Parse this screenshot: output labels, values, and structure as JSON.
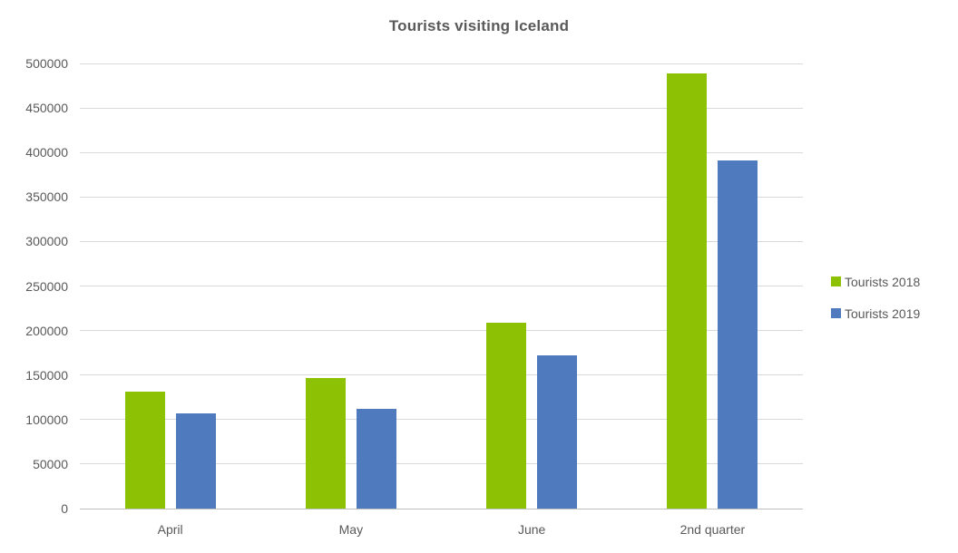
{
  "chart_data": {
    "type": "bar",
    "title": "Tourists visiting Iceland",
    "categories": [
      "April",
      "May",
      "June",
      "2nd quarter"
    ],
    "series": [
      {
        "name": "Tourists 2018",
        "color": "#8cc104",
        "values": [
          131000,
          147000,
          209000,
          489000
        ]
      },
      {
        "name": "Tourists 2019",
        "color": "#4f7bbe",
        "values": [
          107000,
          112000,
          172000,
          391000
        ]
      }
    ],
    "xlabel": "",
    "ylabel": "",
    "ylim": [
      0,
      500000
    ],
    "ytick_step": 50000,
    "ytick_labels": [
      "0",
      "50000",
      "100000",
      "150000",
      "200000",
      "250000",
      "300000",
      "350000",
      "400000",
      "450000",
      "500000"
    ],
    "grid": true,
    "legend_position": "right",
    "colors": {
      "gridline": "#d9d9d9",
      "axis_line": "#bfbfbf",
      "text": "#595959",
      "background": "#ffffff"
    }
  }
}
